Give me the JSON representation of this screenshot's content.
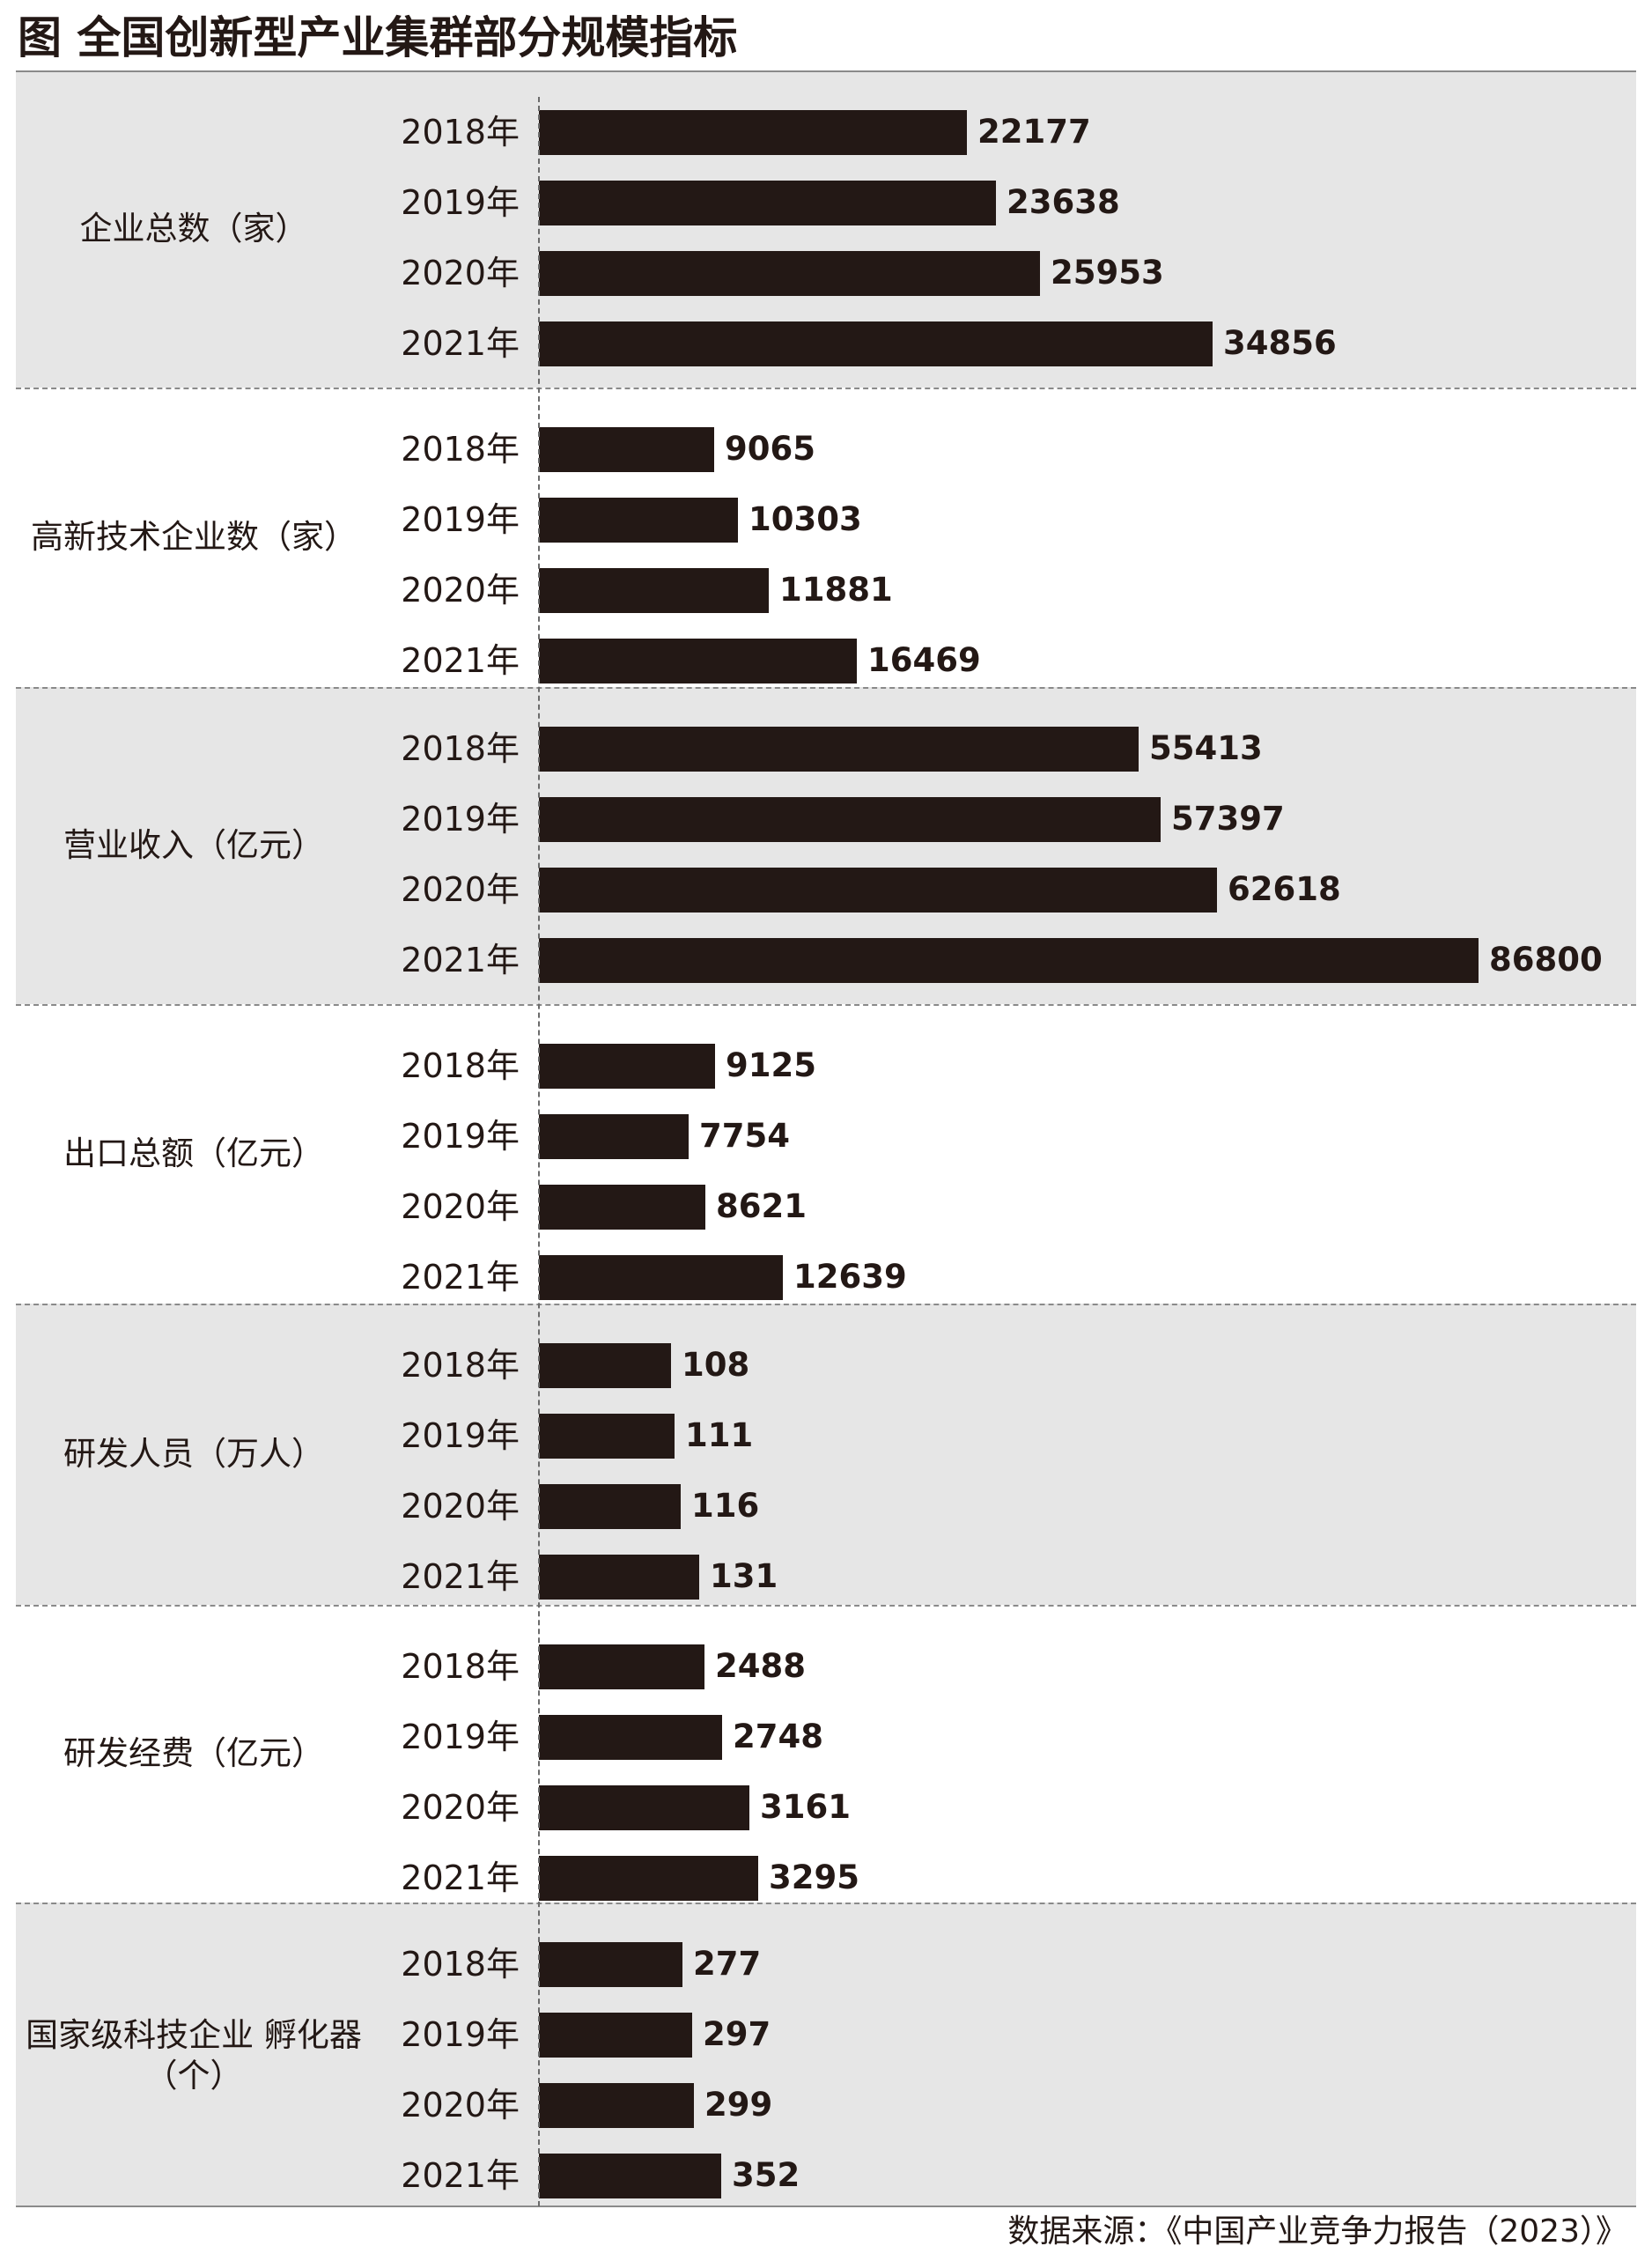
{
  "title": "图 全国创新型产业集群部分规模指标",
  "source": "数据来源：《中国产业竞争力报告（2023）》",
  "colors": {
    "bar": "#231815",
    "band_shaded": "#e6e6e6",
    "band_plain": "#ffffff",
    "text": "#231815"
  },
  "chart_data": {
    "type": "bar",
    "orientation": "horizontal",
    "title": "图 全国创新型产业集群部分规模指标",
    "xlabel": "",
    "ylabel": "",
    "categories": [
      "2018年",
      "2019年",
      "2020年",
      "2021年"
    ],
    "groups": [
      {
        "name": "企业总数（家）",
        "values": [
          22177,
          23638,
          25953,
          34856
        ],
        "labels": [
          "22177",
          "23638",
          "25953",
          "34856"
        ]
      },
      {
        "name": "高新技术企业数（家）",
        "values": [
          9065,
          10303,
          11881,
          16469
        ],
        "labels": [
          "9065",
          "10303",
          "11881",
          "16469"
        ]
      },
      {
        "name": "营业收入（亿元）",
        "values": [
          55413,
          57397,
          62618,
          86800
        ],
        "labels": [
          "55413",
          "57397",
          "62618",
          "86800"
        ]
      },
      {
        "name": "出口总额（亿元）",
        "values": [
          9125,
          7754,
          8621,
          12639
        ],
        "labels": [
          "9125",
          "7754",
          "8621",
          "12639"
        ]
      },
      {
        "name": "研发人员（万人）",
        "values": [
          108,
          111,
          116,
          131
        ],
        "labels": [
          "108",
          "111",
          "116",
          "131"
        ]
      },
      {
        "name": "研发经费（亿元）",
        "values": [
          2488,
          2748,
          3161,
          3295
        ],
        "labels": [
          "2488",
          "2748",
          "3161",
          "3295"
        ]
      },
      {
        "name_lines": [
          "国家级科技企业 孵化器",
          "（个）"
        ],
        "values": [
          277,
          297,
          299,
          352
        ],
        "labels": [
          "277",
          "297",
          "299",
          "352"
        ]
      }
    ],
    "legend": "none",
    "grid": false,
    "scale_note": "each group drawn with its own independent scale"
  }
}
